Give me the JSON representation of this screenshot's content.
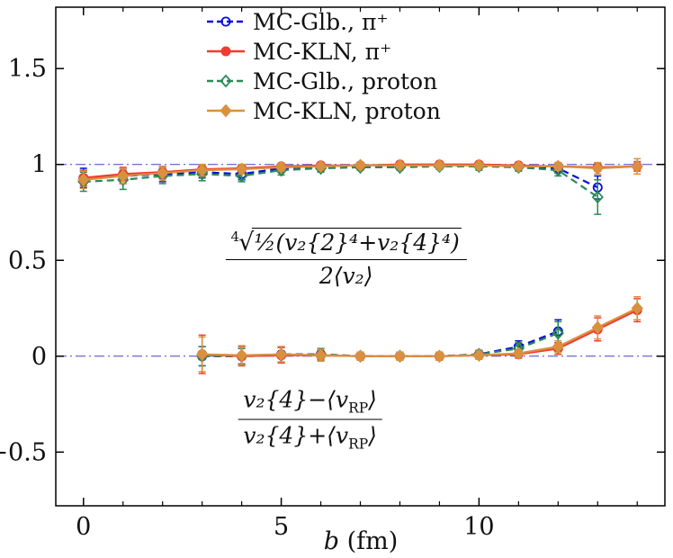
{
  "chart_data": {
    "type": "line",
    "title": "",
    "xlabel": "b (fm)",
    "xlabel_var": "b",
    "xlabel_rest": " (fm)",
    "ylabel": "",
    "xlim": [
      -0.7,
      14.7
    ],
    "ylim": [
      -0.78,
      1.82
    ],
    "xticks": [
      0,
      5,
      10
    ],
    "xtick_labels": [
      "0",
      "5",
      "10"
    ],
    "xticks_minor": [
      1,
      2,
      3,
      4,
      6,
      7,
      8,
      9,
      11,
      12,
      13,
      14
    ],
    "yticks": [
      -0.5,
      0,
      0.5,
      1,
      1.5
    ],
    "ytick_labels": [
      "−0.5",
      "0",
      "0.5",
      "1",
      "1.5"
    ],
    "grid": false,
    "legend_position": "top-center",
    "colors": {
      "mc_glb": "#0b0bdf",
      "mc_kln_pion": "#f23b30",
      "mc_glb_proton": "#2a8a57",
      "mc_kln_proton": "#d8913e",
      "reference": "#4444cc"
    },
    "reference_lines": [
      {
        "y": 1,
        "style": "dash-dot"
      },
      {
        "y": 0,
        "style": "dash-dot"
      }
    ],
    "legend": [
      {
        "label": "MC-Glb., π⁺",
        "color": "#0b0bdf",
        "dash": "dashed",
        "marker": "circle-open"
      },
      {
        "label": "MC-KLN, π⁺",
        "color": "#f23b30",
        "dash": "solid",
        "marker": "circle-filled"
      },
      {
        "label": "MC-Glb., proton",
        "color": "#2a8a57",
        "dash": "dashed",
        "marker": "diamond-open"
      },
      {
        "label": "MC-KLN, proton",
        "color": "#d8913e",
        "dash": "solid",
        "marker": "diamond-filled"
      }
    ],
    "series": [
      {
        "id": "mc-glb-pion-upper",
        "legend_label": "MC-Glb., π⁺",
        "group": "upper-ratio",
        "color": "#0b0bdf",
        "dash": "dashed",
        "marker": "circle-open",
        "x": [
          0,
          1,
          2,
          3,
          4,
          5,
          6,
          7,
          8,
          9,
          10,
          11,
          12,
          13
        ],
        "y": [
          0.93,
          0.94,
          0.95,
          0.96,
          0.95,
          0.98,
          0.985,
          0.99,
          0.99,
          0.995,
          0.995,
          0.99,
          0.98,
          0.88
        ],
        "yerr": [
          0.05,
          0.04,
          0.04,
          0.03,
          0.03,
          0.02,
          0.02,
          0.015,
          0.015,
          0.015,
          0.015,
          0.02,
          0.025,
          0.06
        ]
      },
      {
        "id": "mc-glb-proton-upper",
        "legend_label": "MC-Glb., proton",
        "group": "upper-ratio",
        "color": "#2a8a57",
        "dash": "dashed",
        "marker": "diamond-open",
        "x": [
          0,
          1,
          2,
          3,
          4,
          5,
          6,
          7,
          8,
          9,
          10,
          11,
          12,
          13
        ],
        "y": [
          0.91,
          0.92,
          0.94,
          0.95,
          0.94,
          0.97,
          0.98,
          0.985,
          0.985,
          0.99,
          0.99,
          0.985,
          0.97,
          0.83
        ],
        "yerr": [
          0.05,
          0.05,
          0.04,
          0.035,
          0.03,
          0.025,
          0.02,
          0.015,
          0.015,
          0.015,
          0.02,
          0.02,
          0.03,
          0.09
        ]
      },
      {
        "id": "mc-kln-pion-upper",
        "legend_label": "MC-KLN, π⁺",
        "group": "upper-ratio",
        "color": "#f23b30",
        "dash": "solid",
        "marker": "circle-filled",
        "x": [
          0,
          1,
          2,
          3,
          4,
          5,
          6,
          7,
          8,
          9,
          10,
          11,
          12,
          13,
          14
        ],
        "y": [
          0.93,
          0.95,
          0.96,
          0.975,
          0.98,
          0.99,
          0.995,
          0.995,
          1.0,
          1.0,
          1.0,
          0.995,
          0.99,
          0.985,
          0.99
        ],
        "yerr": [
          0.04,
          0.035,
          0.03,
          0.025,
          0.02,
          0.015,
          0.012,
          0.01,
          0.01,
          0.01,
          0.01,
          0.012,
          0.015,
          0.02,
          0.025
        ]
      },
      {
        "id": "mc-kln-proton-upper",
        "legend_label": "MC-KLN, proton",
        "group": "upper-ratio",
        "color": "#d8913e",
        "dash": "solid",
        "marker": "diamond-filled",
        "x": [
          0,
          1,
          2,
          3,
          4,
          5,
          6,
          7,
          8,
          9,
          10,
          11,
          12,
          13,
          14
        ],
        "y": [
          0.92,
          0.94,
          0.955,
          0.97,
          0.975,
          0.985,
          0.99,
          0.995,
          0.995,
          0.995,
          0.995,
          0.99,
          0.99,
          0.98,
          0.99
        ],
        "yerr": [
          0.045,
          0.04,
          0.035,
          0.03,
          0.025,
          0.02,
          0.015,
          0.012,
          0.012,
          0.012,
          0.012,
          0.015,
          0.02,
          0.03,
          0.04
        ]
      },
      {
        "id": "mc-glb-pion-lower",
        "legend_label": "MC-Glb., π⁺",
        "group": "lower-ratio",
        "color": "#0b0bdf",
        "dash": "dashed",
        "marker": "circle-open",
        "x": [
          3,
          4,
          5,
          6,
          7,
          8,
          9,
          10,
          11,
          12
        ],
        "y": [
          0.0,
          0.0,
          0.01,
          0.01,
          0.0,
          0.0,
          0.0,
          0.01,
          0.05,
          0.13
        ],
        "yerr": [
          0.05,
          0.04,
          0.04,
          0.03,
          0.02,
          0.02,
          0.02,
          0.02,
          0.03,
          0.06
        ]
      },
      {
        "id": "mc-glb-proton-lower",
        "legend_label": "MC-Glb., proton",
        "group": "lower-ratio",
        "color": "#2a8a57",
        "dash": "dashed",
        "marker": "diamond-open",
        "x": [
          3,
          4,
          5,
          6,
          7,
          8,
          9,
          10,
          11,
          12
        ],
        "y": [
          0.0,
          0.0,
          0.005,
          0.01,
          0.0,
          0.0,
          0.0,
          0.01,
          0.04,
          0.12
        ],
        "yerr": [
          0.05,
          0.04,
          0.04,
          0.03,
          0.02,
          0.02,
          0.02,
          0.02,
          0.03,
          0.06
        ]
      },
      {
        "id": "mc-kln-pion-lower",
        "legend_label": "MC-KLN, π⁺",
        "group": "lower-ratio",
        "color": "#f23b30",
        "dash": "solid",
        "marker": "circle-filled",
        "x": [
          3,
          4,
          5,
          6,
          7,
          8,
          9,
          10,
          11,
          12,
          13,
          14
        ],
        "y": [
          0.01,
          0.0,
          0.005,
          0.005,
          0.0,
          0.0,
          0.0,
          0.005,
          0.01,
          0.04,
          0.14,
          0.24
        ],
        "yerr": [
          0.1,
          0.05,
          0.04,
          0.03,
          0.02,
          0.02,
          0.02,
          0.02,
          0.02,
          0.03,
          0.06,
          0.06
        ]
      },
      {
        "id": "mc-kln-proton-lower",
        "legend_label": "MC-KLN, proton",
        "group": "lower-ratio",
        "color": "#d8913e",
        "dash": "solid",
        "marker": "diamond-filled",
        "x": [
          3,
          4,
          5,
          6,
          7,
          8,
          9,
          10,
          11,
          12,
          13,
          14
        ],
        "y": [
          0.01,
          0.005,
          0.01,
          0.005,
          0.0,
          0.0,
          0.0,
          0.005,
          0.015,
          0.05,
          0.15,
          0.25
        ],
        "yerr": [
          0.09,
          0.05,
          0.04,
          0.03,
          0.02,
          0.02,
          0.02,
          0.02,
          0.02,
          0.03,
          0.06,
          0.06
        ]
      }
    ],
    "annotations": [
      {
        "id": "upper-ratio-formula",
        "x": 6.64,
        "y": 0.51,
        "radical_index": "4",
        "radical_sign": "√",
        "radicand": "½(v₂{2}⁴+v₂{4}⁴)",
        "denominator": "2⟨v₂⟩"
      },
      {
        "id": "lower-ratio-formula",
        "x": 5.73,
        "y": -0.33,
        "num_prefix": "v₂{4}−⟨v",
        "num_sub": "RP",
        "num_suffix": "⟩",
        "den_prefix": "v₂{4}+⟨v",
        "den_sub": "RP",
        "den_suffix": "⟩"
      }
    ]
  }
}
